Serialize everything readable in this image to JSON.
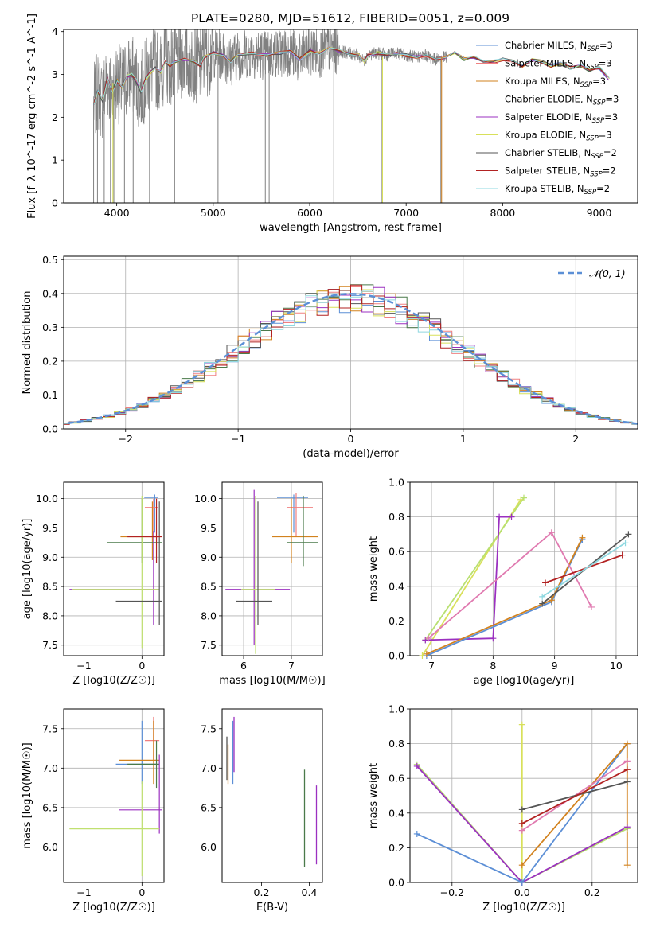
{
  "figure": {
    "title": "PLATE=0280, MJD=51612, FIBERID=0051, z=0.009"
  },
  "colors": {
    "data": "#808080",
    "Chabrier MILES": "#5c8fd6",
    "Salpeter MILES": "#f08080",
    "Kroupa MILES": "#d2821e",
    "Chabrier ELODIE": "#4a7a4a",
    "Salpeter ELODIE": "#9b30c0",
    "Kroupa ELODIE": "#d8e05a",
    "Chabrier STELIB": "#555555",
    "Salpeter STELIB": "#b22222",
    "Kroupa STELIB": "#8fd8e0",
    "normal": "#5b8fd6",
    "scatter_series": [
      "#5c8fd6",
      "#f08080",
      "#d2821e",
      "#4a7a4a",
      "#9b30c0",
      "#c0e070",
      "#555555",
      "#b22222",
      "#8fd8e0",
      "#e07ab0"
    ]
  },
  "chart_data": [
    {
      "id": "spectrum",
      "type": "line",
      "xlabel": "wavelength [Angstrom, rest frame]",
      "ylabel": "Flux [f_λ 10^-17 erg cm^-2 s^-1 A^-1]",
      "xlim": [
        3450,
        9400
      ],
      "ylim": [
        0,
        4.05
      ],
      "xticks": [
        "4000",
        "5000",
        "6000",
        "7000",
        "8000",
        "9000"
      ],
      "yticks": [
        "0",
        "1",
        "2",
        "3",
        "4"
      ],
      "grid": false,
      "legend_position": "top-right",
      "legend": [
        {
          "name": "Chabrier MILES",
          "nssp": "3"
        },
        {
          "name": "Salpeter MILES",
          "nssp": "3"
        },
        {
          "name": "Kroupa MILES",
          "nssp": "3"
        },
        {
          "name": "Chabrier ELODIE",
          "nssp": "3"
        },
        {
          "name": "Salpeter ELODIE",
          "nssp": "3"
        },
        {
          "name": "Kroupa ELODIE",
          "nssp": "3"
        },
        {
          "name": "Chabrier STELIB",
          "nssp": "2"
        },
        {
          "name": "Salpeter STELIB",
          "nssp": "2"
        },
        {
          "name": "Kroupa STELIB",
          "nssp": "2"
        }
      ],
      "model_continuum": {
        "x": [
          3760,
          3800,
          3850,
          3900,
          3950,
          4000,
          4050,
          4100,
          4150,
          4200,
          4250,
          4300,
          4350,
          4400,
          4450,
          4500,
          4550,
          4600,
          4700,
          4800,
          4861,
          4900,
          5000,
          5100,
          5175,
          5250,
          5400,
          5550,
          5700,
          5800,
          5893,
          6000,
          6100,
          6200,
          6300,
          6400,
          6500,
          6563,
          6600,
          6700,
          6800,
          6900,
          7000,
          7100,
          7200,
          7300,
          7400,
          7500,
          7600,
          7700,
          7800,
          7900,
          8000,
          8100,
          8200,
          8300,
          8400,
          8500,
          8600,
          8700,
          8800,
          8900,
          9000,
          9100
        ],
        "y": [
          2.3,
          2.6,
          2.4,
          2.9,
          2.6,
          2.85,
          2.7,
          2.95,
          3.0,
          2.85,
          2.6,
          2.9,
          3.05,
          3.15,
          3.05,
          3.3,
          3.2,
          3.3,
          3.35,
          3.3,
          3.2,
          3.4,
          3.5,
          3.45,
          3.3,
          3.45,
          3.5,
          3.45,
          3.5,
          3.55,
          3.35,
          3.55,
          3.5,
          3.6,
          3.55,
          3.5,
          3.45,
          3.3,
          3.45,
          3.5,
          3.45,
          3.5,
          3.45,
          3.4,
          3.45,
          3.35,
          3.4,
          3.5,
          3.35,
          3.4,
          3.3,
          3.3,
          3.35,
          3.3,
          3.2,
          3.35,
          3.3,
          3.2,
          3.25,
          3.15,
          3.2,
          3.1,
          3.15,
          2.9
        ]
      },
      "data_noise_amplitude": 0.6,
      "drops": [
        {
          "x": 3760,
          "y": 0
        },
        {
          "x": 3800,
          "y": 0
        },
        {
          "x": 3870,
          "y": 0
        },
        {
          "x": 3935,
          "y": 0
        },
        {
          "x": 3970,
          "y": 0
        },
        {
          "x": 4080,
          "y": 0
        },
        {
          "x": 4170,
          "y": 0
        },
        {
          "x": 4340,
          "y": 0
        },
        {
          "x": 4600,
          "y": 0
        },
        {
          "x": 5050,
          "y": 0
        },
        {
          "x": 5540,
          "y": 0
        },
        {
          "x": 5580,
          "y": 0
        },
        {
          "x": 6250,
          "y": 0
        },
        {
          "x": 6750,
          "y": 0
        },
        {
          "x": 7360,
          "y": 0
        }
      ]
    },
    {
      "id": "residuals",
      "type": "line",
      "xlabel": "(data-model)/error",
      "ylabel": "Normed distribution",
      "xlim": [
        -2.55,
        2.55
      ],
      "ylim": [
        0,
        0.51
      ],
      "xticks": [
        "−2",
        "−1",
        "0",
        "1",
        "2"
      ],
      "yticks": [
        "0.0",
        "0.1",
        "0.2",
        "0.3",
        "0.4",
        "0.5"
      ],
      "grid": true,
      "legend_position": "top-right",
      "legend": [
        {
          "name": "𝒩(0, 1)"
        }
      ],
      "bin_width": 0.1,
      "normal": {
        "mean": 0,
        "sigma": 1
      }
    },
    {
      "id": "age-vs-Z",
      "type": "scatter",
      "xlabel": "Z [log10(Z/Z☉)]",
      "ylabel": "age  [log10(age/yr)]",
      "xlim": [
        -1.35,
        0.38
      ],
      "ylim": [
        7.32,
        10.28
      ],
      "xticks": [
        "−1",
        "0"
      ],
      "yticks": [
        "7.5",
        "8.0",
        "8.5",
        "9.0",
        "9.5",
        "10.0"
      ],
      "grid": true,
      "errorbars": [
        {
          "x": 0.22,
          "y": 10.02,
          "xerr": [
            0.18,
            0.05
          ],
          "yerr": [
            0.6,
            0.05
          ]
        },
        {
          "x": 0.2,
          "y": 9.85,
          "xerr": [
            0.15,
            0.08
          ],
          "yerr": [
            0.5,
            0.15
          ]
        },
        {
          "x": 0.18,
          "y": 9.35,
          "xerr": [
            0.55,
            0.1
          ],
          "yerr": [
            0.4,
            0.6
          ]
        },
        {
          "x": 0.0,
          "y": 9.25,
          "xerr": [
            0.6,
            0.35
          ],
          "yerr": [
            0.35,
            0.75
          ]
        },
        {
          "x": 0.2,
          "y": 8.45,
          "xerr": [
            1.45,
            0.1
          ],
          "yerr": [
            0.6,
            1.0
          ]
        },
        {
          "x": 0.0,
          "y": 8.45,
          "xerr": [
            1.2,
            0.3
          ],
          "yerr": [
            1.0,
            1.6
          ]
        },
        {
          "x": 0.3,
          "y": 8.25,
          "xerr": [
            0.75,
            0.05
          ],
          "yerr": [
            0.4,
            1.7
          ]
        },
        {
          "x": 0.25,
          "y": 9.35,
          "xerr": [
            0.5,
            0.1
          ],
          "yerr": [
            0.45,
            0.65
          ]
        }
      ]
    },
    {
      "id": "age-vs-mass",
      "type": "scatter",
      "xlabel": "mass [log10(M/M☉)]",
      "ylabel": "",
      "xlim": [
        5.55,
        7.65
      ],
      "ylim": [
        7.32,
        10.28
      ],
      "xticks": [
        "6",
        "7"
      ],
      "yticks": [
        "7.5",
        "8.0",
        "8.5",
        "9.0",
        "9.5",
        "10.0"
      ],
      "grid": true,
      "errorbars": [
        {
          "x": 7.05,
          "y": 10.02,
          "xerr": [
            0.35,
            0.3
          ],
          "yerr": [
            0.6,
            0.05
          ]
        },
        {
          "x": 7.1,
          "y": 9.85,
          "xerr": [
            0.2,
            0.35
          ],
          "yerr": [
            0.5,
            0.25
          ]
        },
        {
          "x": 7.0,
          "y": 9.35,
          "xerr": [
            0.4,
            0.55
          ],
          "yerr": [
            0.45,
            0.65
          ]
        },
        {
          "x": 7.25,
          "y": 9.25,
          "xerr": [
            0.35,
            0.3
          ],
          "yerr": [
            0.4,
            0.8
          ]
        },
        {
          "x": 6.22,
          "y": 8.45,
          "xerr": [
            0.6,
            0.75
          ],
          "yerr": [
            0.95,
            1.7
          ]
        },
        {
          "x": 6.25,
          "y": 8.45,
          "xerr": [
            0.3,
            0.4
          ],
          "yerr": [
            1.1,
            1.6
          ]
        },
        {
          "x": 6.3,
          "y": 8.25,
          "xerr": [
            0.45,
            0.3
          ],
          "yerr": [
            0.4,
            1.7
          ]
        }
      ]
    },
    {
      "id": "massweight-vs-age",
      "type": "scatter",
      "xlabel": "age  [log10(age/yr)]",
      "ylabel": "mass weight",
      "xlim": [
        6.65,
        10.35
      ],
      "ylim": [
        0,
        1.0
      ],
      "xticks": [
        "7",
        "8",
        "9",
        "10"
      ],
      "yticks": [
        "0.0",
        "0.2",
        "0.4",
        "0.6",
        "0.8",
        "1.0"
      ],
      "grid": true,
      "series": [
        {
          "x": [
            6.85,
            8.45
          ],
          "y": [
            0.0,
            0.9
          ]
        },
        {
          "x": [
            6.9,
            8.5
          ],
          "y": [
            0.09,
            0.91
          ]
        },
        {
          "x": [
            6.9,
            8.0,
            8.1,
            8.3
          ],
          "y": [
            0.09,
            0.1,
            0.8,
            0.8
          ]
        },
        {
          "x": [
            6.92,
            8.95,
            9.45
          ],
          "y": [
            0.0,
            0.31,
            0.67
          ]
        },
        {
          "x": [
            6.92,
            8.95,
            9.45
          ],
          "y": [
            0.01,
            0.32,
            0.68
          ]
        },
        {
          "x": [
            6.95,
            8.95,
            9.6
          ],
          "y": [
            0.1,
            0.71,
            0.28
          ]
        },
        {
          "x": [
            8.8,
            10.2
          ],
          "y": [
            0.3,
            0.7
          ]
        },
        {
          "x": [
            8.85,
            10.1
          ],
          "y": [
            0.42,
            0.58
          ]
        },
        {
          "x": [
            8.8,
            10.15
          ],
          "y": [
            0.34,
            0.65
          ]
        }
      ]
    },
    {
      "id": "mass-vs-Z",
      "type": "scatter",
      "xlabel": "Z [log10(Z/Z☉)]",
      "ylabel": "mass [log10(M/M☉)]",
      "xlim": [
        -1.35,
        0.38
      ],
      "ylim": [
        5.55,
        7.75
      ],
      "xticks": [
        "−1",
        "0"
      ],
      "yticks": [
        "6.0",
        "6.5",
        "7.0",
        "7.5"
      ],
      "grid": true,
      "errorbars": [
        {
          "x": 0.0,
          "y": 7.05,
          "xerr": [
            0.45,
            0.25
          ],
          "yerr": [
            0.25,
            0.55
          ]
        },
        {
          "x": 0.2,
          "y": 7.35,
          "xerr": [
            0.15,
            0.1
          ],
          "yerr": [
            0.25,
            0.3
          ]
        },
        {
          "x": 0.2,
          "y": 7.1,
          "xerr": [
            0.6,
            0.1
          ],
          "yerr": [
            0.3,
            0.5
          ]
        },
        {
          "x": 0.25,
          "y": 7.05,
          "xerr": [
            0.5,
            0.05
          ],
          "yerr": [
            0.3,
            0.3
          ]
        },
        {
          "x": 0.3,
          "y": 6.47,
          "xerr": [
            0.7,
            0.05
          ],
          "yerr": [
            0.3,
            0.7
          ]
        },
        {
          "x": 0.0,
          "y": 6.23,
          "xerr": [
            1.25,
            0.3
          ],
          "yerr": [
            0.6,
            0.6
          ]
        }
      ]
    },
    {
      "id": "mass-vs-ebv",
      "type": "scatter",
      "xlabel": "E(B-V)",
      "ylabel": "",
      "xlim": [
        0.035,
        0.455
      ],
      "ylim": [
        5.55,
        7.75
      ],
      "xticks": [
        "0.2",
        "0.4"
      ],
      "yticks": [
        "6.0",
        "6.5",
        "7.0",
        "7.5"
      ],
      "grid": false,
      "vbars": [
        {
          "x": 0.055,
          "y0": 6.85,
          "y1": 7.4
        },
        {
          "x": 0.06,
          "y0": 6.8,
          "y1": 7.3
        },
        {
          "x": 0.08,
          "y0": 6.8,
          "y1": 7.6
        },
        {
          "x": 0.085,
          "y0": 6.95,
          "y1": 7.65
        },
        {
          "x": 0.38,
          "y0": 5.75,
          "y1": 6.98
        },
        {
          "x": 0.43,
          "y0": 5.78,
          "y1": 6.78
        }
      ]
    },
    {
      "id": "massweight-vs-Z",
      "type": "scatter",
      "xlabel": "Z [log10(Z/Z☉)]",
      "ylabel": "mass weight",
      "xlim": [
        -0.32,
        0.33
      ],
      "ylim": [
        0,
        1.0
      ],
      "xticks": [
        "−0.2",
        "0.0",
        "0.2"
      ],
      "yticks": [
        "0.0",
        "0.2",
        "0.4",
        "0.6",
        "0.8",
        "1.0"
      ],
      "grid": true,
      "series": [
        {
          "x": [
            0.0,
            0.0
          ],
          "y": [
            0.0,
            0.91
          ]
        },
        {
          "x": [
            -0.3,
            0.0,
            0.3
          ],
          "y": [
            0.68,
            0.0,
            0.31
          ]
        },
        {
          "x": [
            -0.3,
            0.0,
            0.3
          ],
          "y": [
            0.67,
            0.0,
            0.32
          ]
        },
        {
          "x": [
            -0.3,
            0.0,
            0.3
          ],
          "y": [
            0.28,
            0.0,
            0.8
          ]
        },
        {
          "x": [
            0.0,
            0.3,
            0.3
          ],
          "y": [
            0.1,
            0.8,
            0.1
          ]
        },
        {
          "x": [
            0.0,
            0.3
          ],
          "y": [
            0.3,
            0.7
          ]
        },
        {
          "x": [
            0.0,
            0.3
          ],
          "y": [
            0.42,
            0.58
          ]
        },
        {
          "x": [
            0.0,
            0.3
          ],
          "y": [
            0.34,
            0.65
          ]
        }
      ]
    }
  ]
}
